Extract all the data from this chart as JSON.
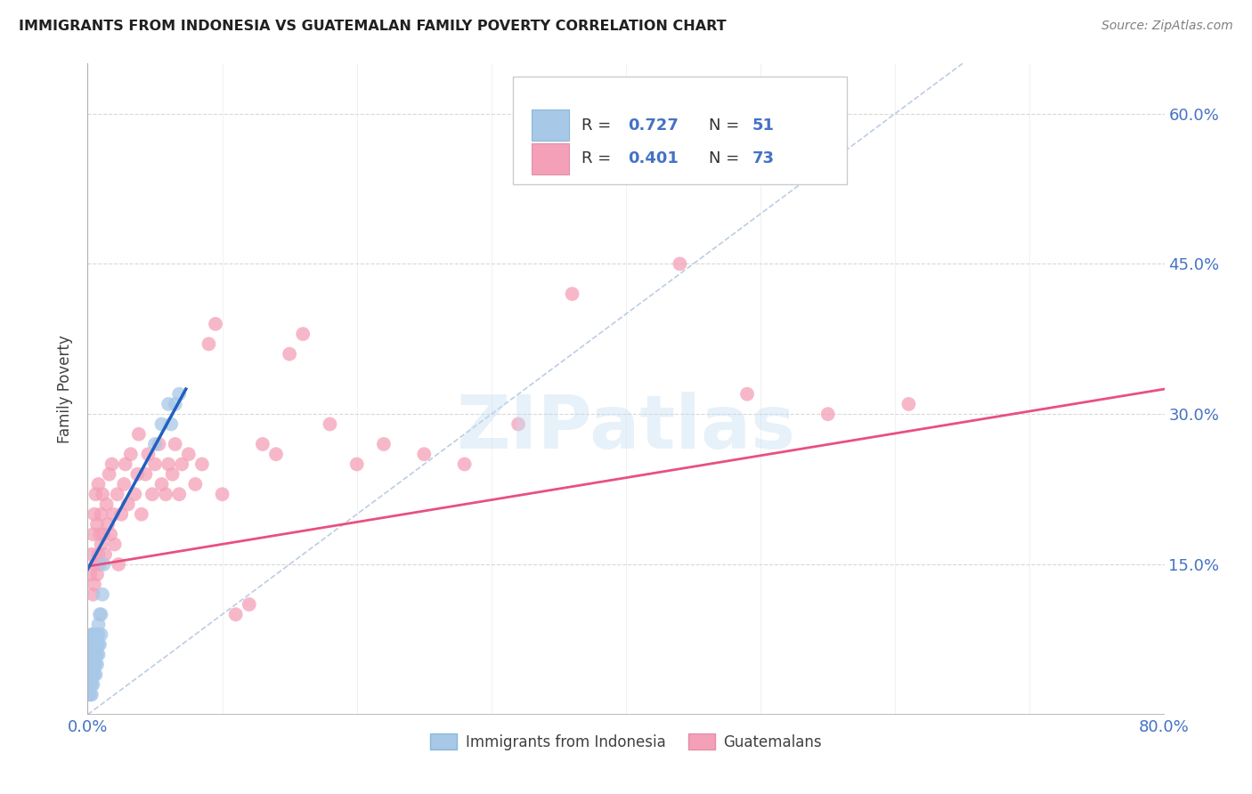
{
  "title": "IMMIGRANTS FROM INDONESIA VS GUATEMALAN FAMILY POVERTY CORRELATION CHART",
  "source": "Source: ZipAtlas.com",
  "ylabel": "Family Poverty",
  "legend_label1": "Immigrants from Indonesia",
  "legend_label2": "Guatemalans",
  "r1": 0.727,
  "n1": 51,
  "r2": 0.401,
  "n2": 73,
  "color1": "#a8c8e8",
  "color2": "#f4a0b8",
  "line_color1": "#2060c0",
  "line_color2": "#e85080",
  "diag_color": "#a0b8d8",
  "watermark": "ZIPatlas",
  "xlim": [
    0.0,
    0.8
  ],
  "ylim": [
    0.0,
    0.65
  ],
  "ytick_labels": [
    "15.0%",
    "30.0%",
    "45.0%",
    "60.0%"
  ],
  "ytick_values": [
    0.15,
    0.3,
    0.45,
    0.6
  ],
  "indonesia_x": [
    0.001,
    0.001,
    0.001,
    0.001,
    0.002,
    0.002,
    0.002,
    0.002,
    0.002,
    0.003,
    0.003,
    0.003,
    0.003,
    0.003,
    0.003,
    0.003,
    0.004,
    0.004,
    0.004,
    0.004,
    0.004,
    0.004,
    0.005,
    0.005,
    0.005,
    0.005,
    0.005,
    0.006,
    0.006,
    0.006,
    0.006,
    0.007,
    0.007,
    0.007,
    0.007,
    0.008,
    0.008,
    0.008,
    0.008,
    0.009,
    0.009,
    0.01,
    0.01,
    0.011,
    0.012,
    0.05,
    0.055,
    0.06,
    0.062,
    0.065,
    0.068
  ],
  "indonesia_y": [
    0.02,
    0.03,
    0.04,
    0.05,
    0.02,
    0.03,
    0.04,
    0.05,
    0.06,
    0.02,
    0.03,
    0.04,
    0.05,
    0.06,
    0.07,
    0.08,
    0.03,
    0.04,
    0.05,
    0.06,
    0.07,
    0.08,
    0.04,
    0.05,
    0.06,
    0.07,
    0.08,
    0.04,
    0.05,
    0.06,
    0.07,
    0.05,
    0.06,
    0.07,
    0.08,
    0.06,
    0.07,
    0.08,
    0.09,
    0.07,
    0.1,
    0.08,
    0.1,
    0.12,
    0.15,
    0.27,
    0.29,
    0.31,
    0.29,
    0.31,
    0.32
  ],
  "guatemalan_x": [
    0.002,
    0.003,
    0.004,
    0.004,
    0.005,
    0.005,
    0.006,
    0.006,
    0.007,
    0.007,
    0.008,
    0.008,
    0.009,
    0.009,
    0.01,
    0.01,
    0.011,
    0.012,
    0.013,
    0.014,
    0.015,
    0.016,
    0.017,
    0.018,
    0.019,
    0.02,
    0.022,
    0.023,
    0.025,
    0.027,
    0.028,
    0.03,
    0.032,
    0.035,
    0.037,
    0.038,
    0.04,
    0.043,
    0.045,
    0.048,
    0.05,
    0.053,
    0.055,
    0.058,
    0.06,
    0.063,
    0.065,
    0.068,
    0.07,
    0.075,
    0.08,
    0.085,
    0.09,
    0.095,
    0.1,
    0.11,
    0.12,
    0.13,
    0.14,
    0.15,
    0.16,
    0.18,
    0.2,
    0.22,
    0.25,
    0.28,
    0.32,
    0.36,
    0.4,
    0.44,
    0.49,
    0.55,
    0.61
  ],
  "guatemalan_y": [
    0.14,
    0.16,
    0.12,
    0.18,
    0.13,
    0.2,
    0.15,
    0.22,
    0.14,
    0.19,
    0.16,
    0.23,
    0.18,
    0.15,
    0.17,
    0.2,
    0.22,
    0.18,
    0.16,
    0.21,
    0.19,
    0.24,
    0.18,
    0.25,
    0.2,
    0.17,
    0.22,
    0.15,
    0.2,
    0.23,
    0.25,
    0.21,
    0.26,
    0.22,
    0.24,
    0.28,
    0.2,
    0.24,
    0.26,
    0.22,
    0.25,
    0.27,
    0.23,
    0.22,
    0.25,
    0.24,
    0.27,
    0.22,
    0.25,
    0.26,
    0.23,
    0.25,
    0.37,
    0.39,
    0.22,
    0.1,
    0.11,
    0.27,
    0.26,
    0.36,
    0.38,
    0.29,
    0.25,
    0.27,
    0.26,
    0.25,
    0.29,
    0.42,
    0.54,
    0.45,
    0.32,
    0.3,
    0.31
  ],
  "blue_line_x": [
    0.0,
    0.073
  ],
  "blue_line_y": [
    0.145,
    0.325
  ],
  "pink_line_x": [
    0.0,
    0.8
  ],
  "pink_line_y": [
    0.148,
    0.325
  ],
  "diag_line_x": [
    0.0,
    0.65
  ],
  "diag_line_y": [
    0.0,
    0.65
  ]
}
